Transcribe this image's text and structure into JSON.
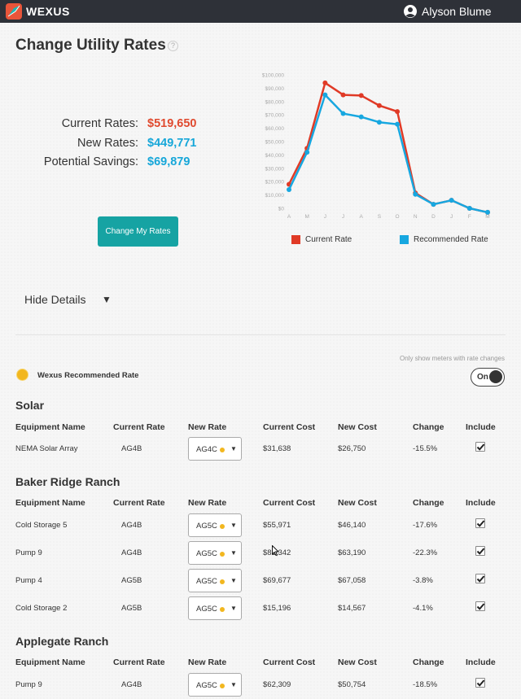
{
  "app": {
    "brand": "WEXUS",
    "user": "Alyson Blume"
  },
  "page": {
    "title": "Change Utility Rates",
    "help": "?"
  },
  "summary": {
    "current_label": "Current Rates:",
    "current_value": "$519,650",
    "new_label": "New Rates:",
    "new_value": "$449,771",
    "savings_label": "Potential Savings:",
    "savings_value": "$69,879"
  },
  "actions": {
    "change_rates": "Change My Rates",
    "hide_details": "Hide Details"
  },
  "chart_data": {
    "type": "line",
    "categories": [
      "A",
      "M",
      "J",
      "J",
      "A",
      "S",
      "O",
      "N",
      "D",
      "J",
      "F",
      "M"
    ],
    "ylim": [
      0,
      100000
    ],
    "yticks": [
      "$0",
      "$10,000",
      "$20,000",
      "$30,000",
      "$40,000",
      "$50,000",
      "$60,000",
      "$70,000",
      "$80,000",
      "$90,000",
      "$100,000"
    ],
    "series": [
      {
        "name": "Current Rate",
        "color": "#e03a26",
        "values": [
          18000,
          45000,
          94000,
          85000,
          84500,
          77000,
          72500,
          11500,
          3000,
          6000,
          0,
          -3000
        ]
      },
      {
        "name": "Recommended Rate",
        "color": "#17a7e0",
        "values": [
          14000,
          42000,
          85000,
          71000,
          68500,
          64500,
          63000,
          10500,
          3000,
          6000,
          0,
          -3000
        ]
      }
    ]
  },
  "filters": {
    "only_show": "Only show meters with rate changes",
    "toggle": "On",
    "recommended_label": "Wexus Recommended Rate"
  },
  "table_headers": [
    "Equipment Name",
    "Current Rate",
    "New Rate",
    "Current Cost",
    "New Cost",
    "Change",
    "Include"
  ],
  "groups": [
    {
      "title": "Solar",
      "rows": [
        {
          "name": "NEMA Solar Array",
          "current_rate": "AG4B",
          "new_rate": "AG4C",
          "current_cost": "$31,638",
          "new_cost": "$26,750",
          "change": "-15.5%"
        }
      ]
    },
    {
      "title": "Baker Ridge Ranch",
      "rows": [
        {
          "name": "Cold Storage 5",
          "current_rate": "AG4B",
          "new_rate": "AG5C",
          "current_cost": "$55,971",
          "new_cost": "$46,140",
          "change": "-17.6%"
        },
        {
          "name": "Pump 9",
          "current_rate": "AG4B",
          "new_rate": "AG5C",
          "current_cost": "$81,342",
          "new_cost": "$63,190",
          "change": "-22.3%"
        },
        {
          "name": "Pump 4",
          "current_rate": "AG5B",
          "new_rate": "AG5C",
          "current_cost": "$69,677",
          "new_cost": "$67,058",
          "change": "-3.8%"
        },
        {
          "name": "Cold Storage 2",
          "current_rate": "AG5B",
          "new_rate": "AG5C",
          "current_cost": "$15,196",
          "new_cost": "$14,567",
          "change": "-4.1%"
        }
      ]
    },
    {
      "title": "Applegate Ranch",
      "rows": [
        {
          "name": "Pump 9",
          "current_rate": "AG4B",
          "new_rate": "AG5C",
          "current_cost": "$62,309",
          "new_cost": "$50,754",
          "change": "-18.5%"
        }
      ]
    }
  ]
}
